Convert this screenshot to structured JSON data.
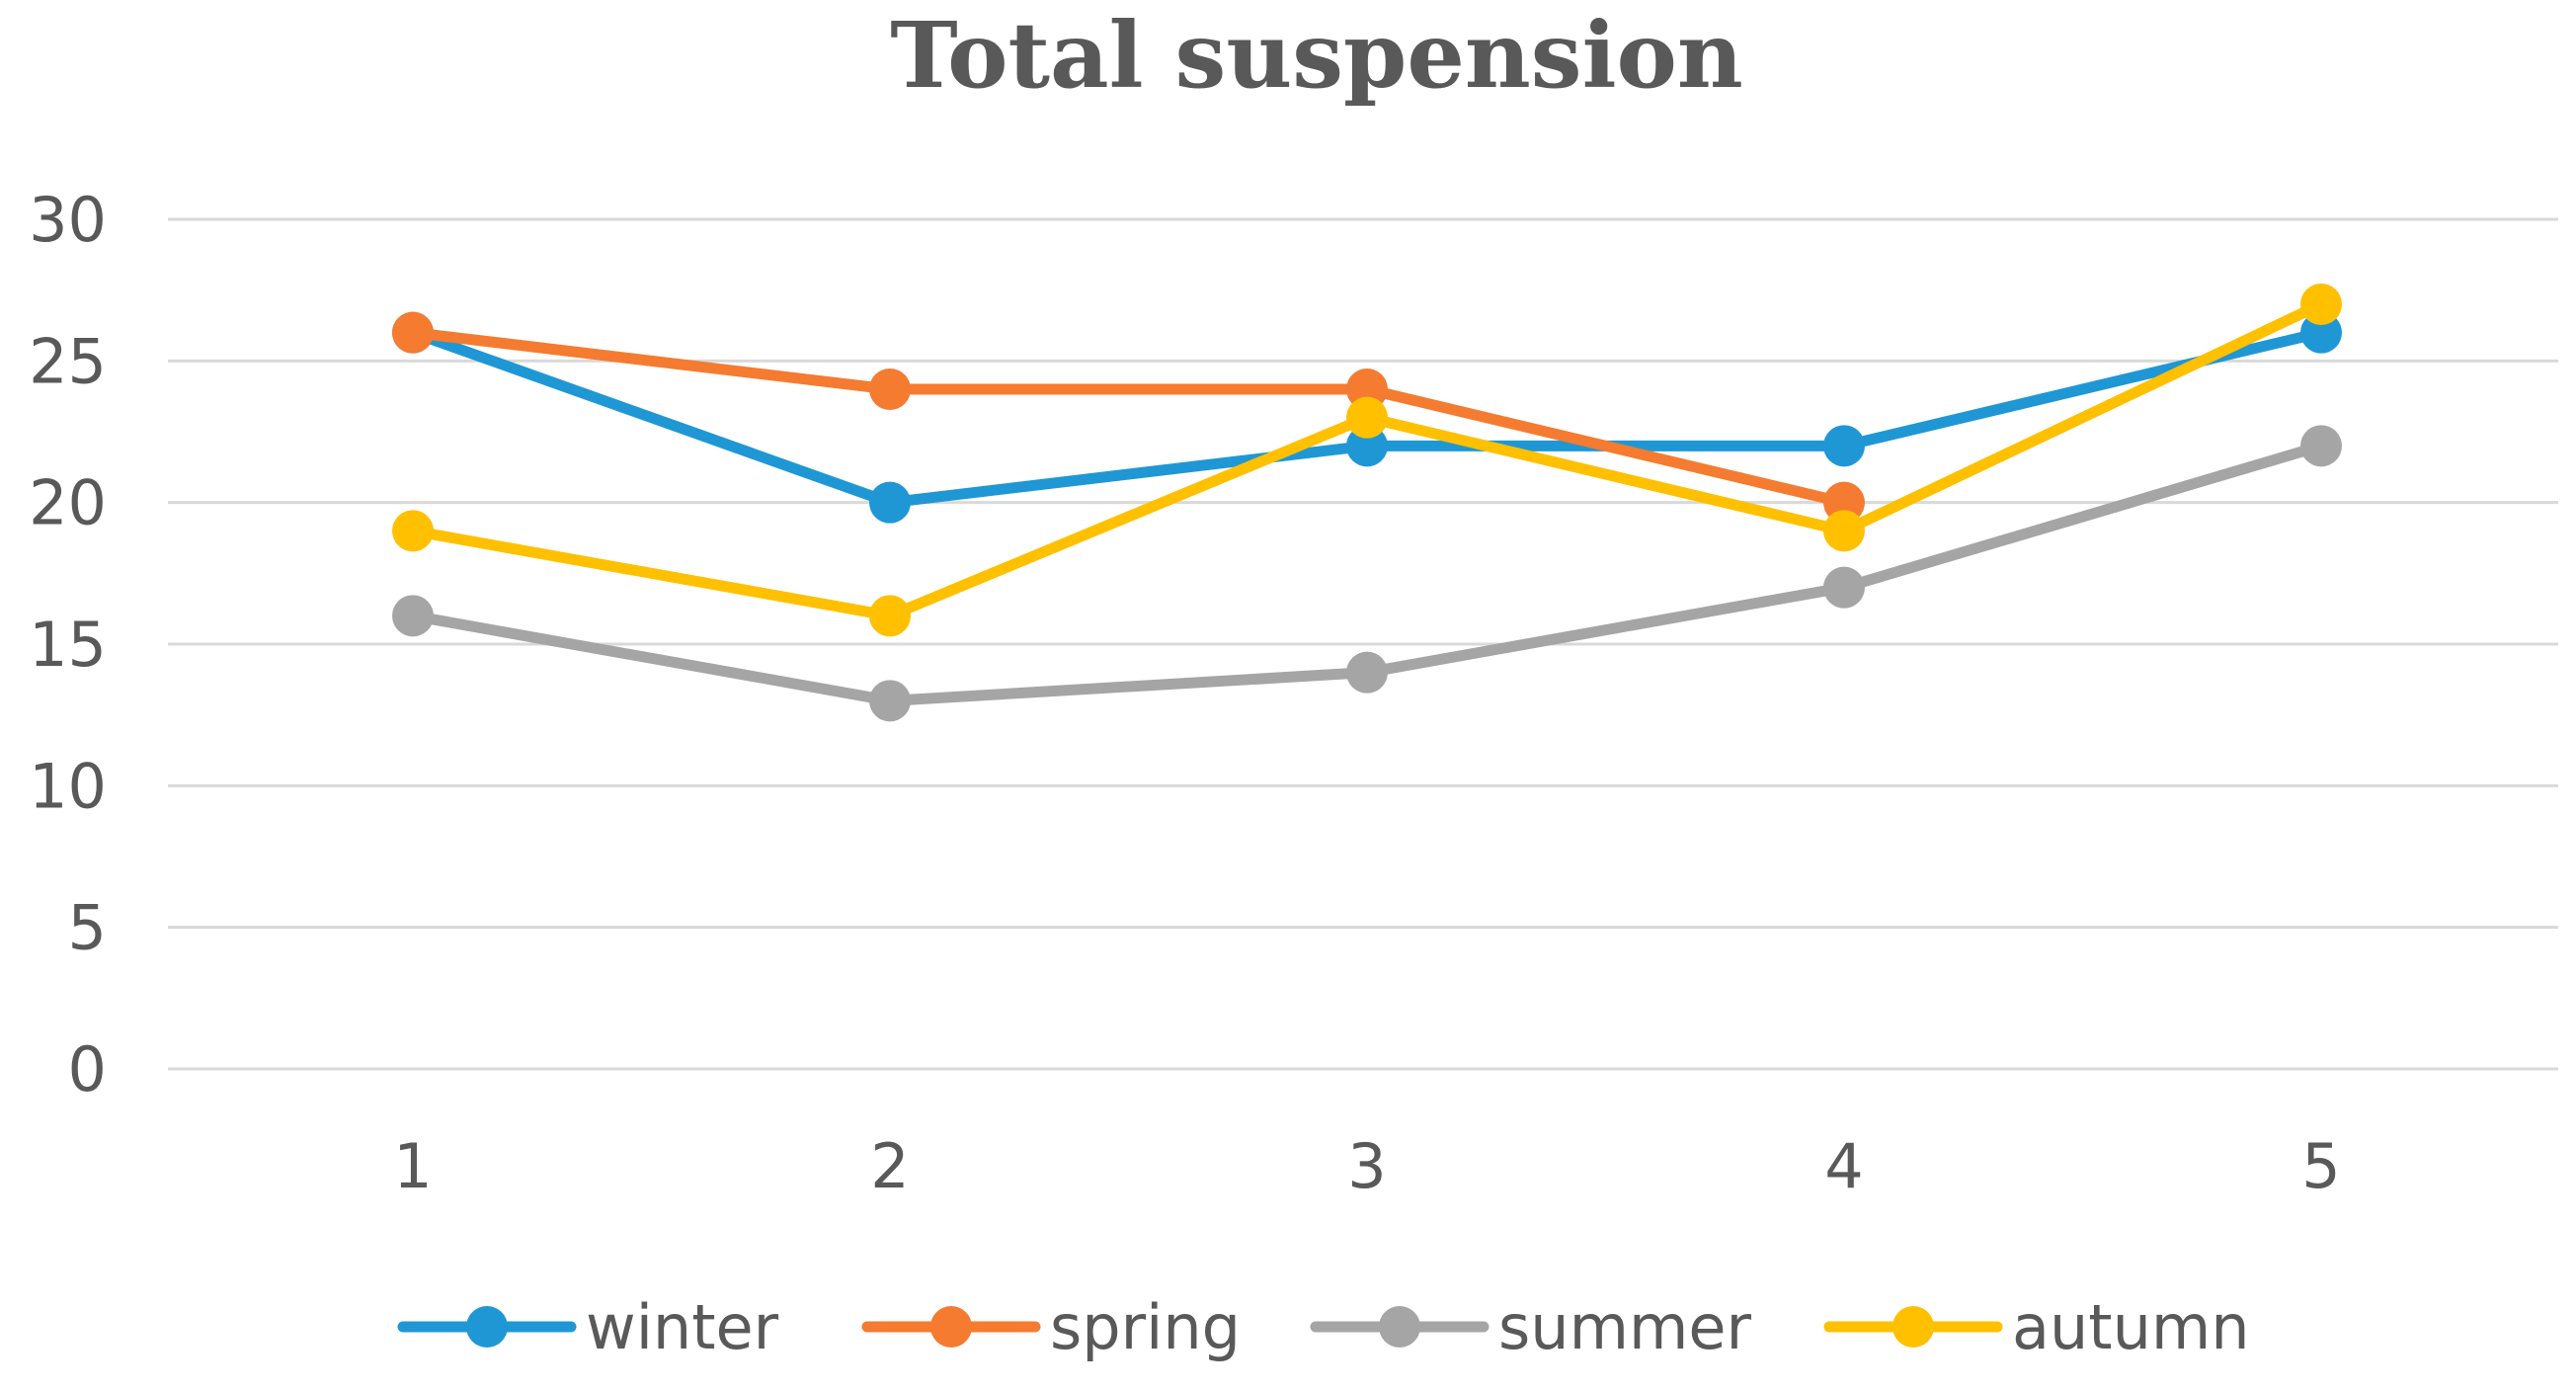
{
  "chart_data": {
    "type": "line",
    "title": "Total suspension",
    "xlabel": "",
    "ylabel": "",
    "categories": [
      "1",
      "2",
      "3",
      "4",
      "5"
    ],
    "ylim": [
      0,
      30
    ],
    "yticks": [
      0,
      5,
      10,
      15,
      20,
      25,
      30
    ],
    "grid": true,
    "legend_position": "bottom",
    "series": [
      {
        "name": "winter",
        "color": "#1F97D5",
        "values": [
          26,
          20,
          22,
          22,
          26
        ]
      },
      {
        "name": "spring",
        "color": "#F47B30",
        "values": [
          26,
          24,
          24,
          20,
          null
        ]
      },
      {
        "name": "summer",
        "color": "#A5A5A5",
        "values": [
          16,
          13,
          14,
          17,
          22
        ]
      },
      {
        "name": "autumn",
        "color": "#FFC000",
        "values": [
          19,
          16,
          23,
          19,
          27
        ]
      }
    ]
  }
}
